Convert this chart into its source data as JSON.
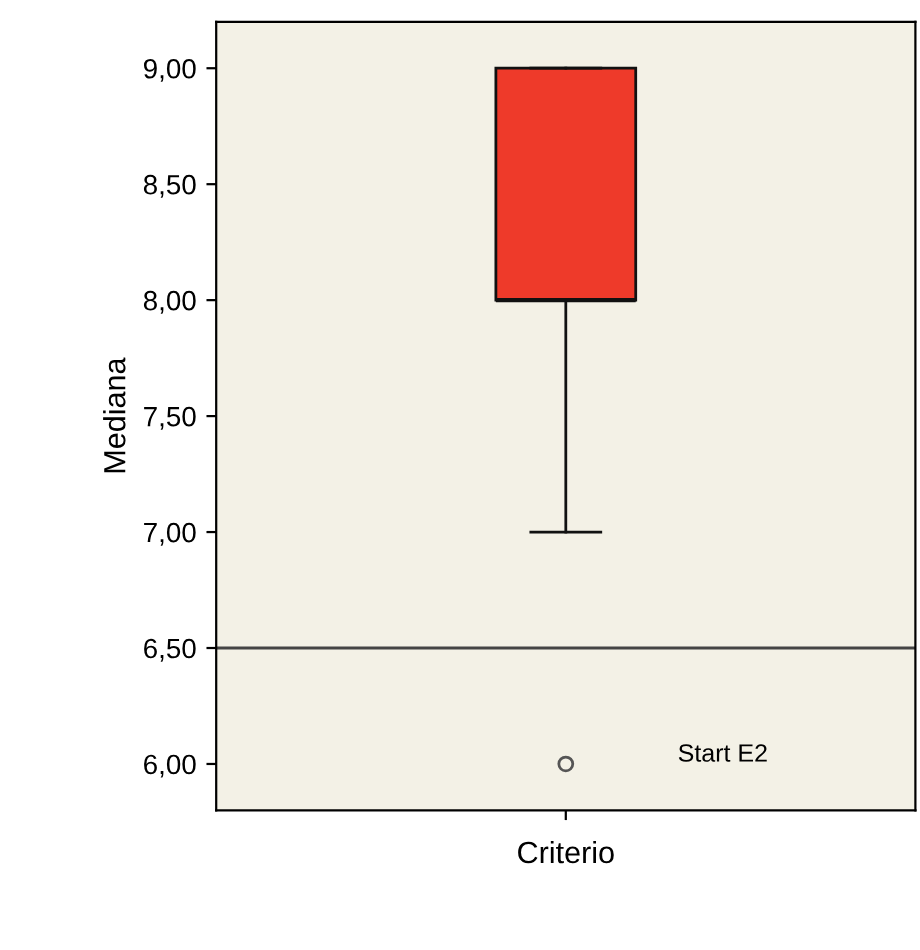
{
  "chart_data": {
    "type": "box",
    "xlabel": "Criterio",
    "ylabel": "Mediana",
    "categories": [
      null
    ],
    "boxes": [
      {
        "low": 7.0,
        "q1": 8.0,
        "median": 8.0,
        "q3": 9.0,
        "high": 9.0,
        "outliers": [
          6.0
        ]
      }
    ],
    "color": "#ee3a2a",
    "ylim": [
      5.8,
      9.2
    ],
    "yticks": [
      {
        "value": 6.0,
        "label": "6,00"
      },
      {
        "value": 6.5,
        "label": "6,50"
      },
      {
        "value": 7.0,
        "label": "7,00"
      },
      {
        "value": 7.5,
        "label": "7,50"
      },
      {
        "value": 8.0,
        "label": "8,00"
      },
      {
        "value": 8.5,
        "label": "8,50"
      },
      {
        "value": 9.0,
        "label": "9,00"
      }
    ],
    "ref_lines": [
      {
        "axis": "y",
        "value": 6.5,
        "color": "#444444"
      }
    ],
    "annotations": [
      "Start E2"
    ],
    "grid": false
  }
}
